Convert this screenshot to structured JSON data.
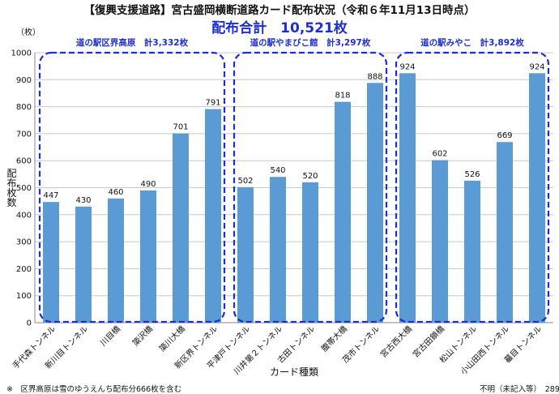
{
  "header": {
    "title": "【復興支援道路】宮古盛岡横断道路カード配布状況（令和６年11月13日時点）",
    "total": "配布合計　10,521枚"
  },
  "footer": {
    "note": "※　区界高原は雪のゆうえんち配布分666枚を含む",
    "unknown": "不明（未記入等）　289枚"
  },
  "chart_data": {
    "type": "bar",
    "ylabel": "配布枚数",
    "xlabel": "カード種類",
    "yunit": "（枚）",
    "ylim": [
      0,
      1000
    ],
    "yticks": [
      0,
      100,
      200,
      300,
      400,
      500,
      600,
      700,
      800,
      900,
      1000
    ],
    "grid": true,
    "bar_color": "#5b9bd5",
    "group_border_color": "#1e2fd0",
    "categories": [
      "手代森トンネル",
      "新川目トンネル",
      "川目橋",
      "簗沢橋",
      "簗川大橋",
      "新区界トンネル",
      "平津戸トンネル",
      "川井第２トンネル",
      "古田トンネル",
      "腹帯大橋",
      "茂市トンネル",
      "宮古西大橋",
      "宮古田鎖橋",
      "松山トンネル",
      "小山田西トンネル",
      "蟇目トンネル"
    ],
    "values": [
      447,
      430,
      460,
      490,
      701,
      791,
      502,
      540,
      520,
      818,
      888,
      924,
      602,
      526,
      669,
      924
    ],
    "groups": [
      {
        "label": "道の駅区界高原　計3,332枚",
        "start": 0,
        "end": 5
      },
      {
        "label": "道の駅やまびこ館　計3,297枚",
        "start": 6,
        "end": 10
      },
      {
        "label": "道の駅みやこ　計3,892枚",
        "start": 11,
        "end": 15
      }
    ]
  }
}
